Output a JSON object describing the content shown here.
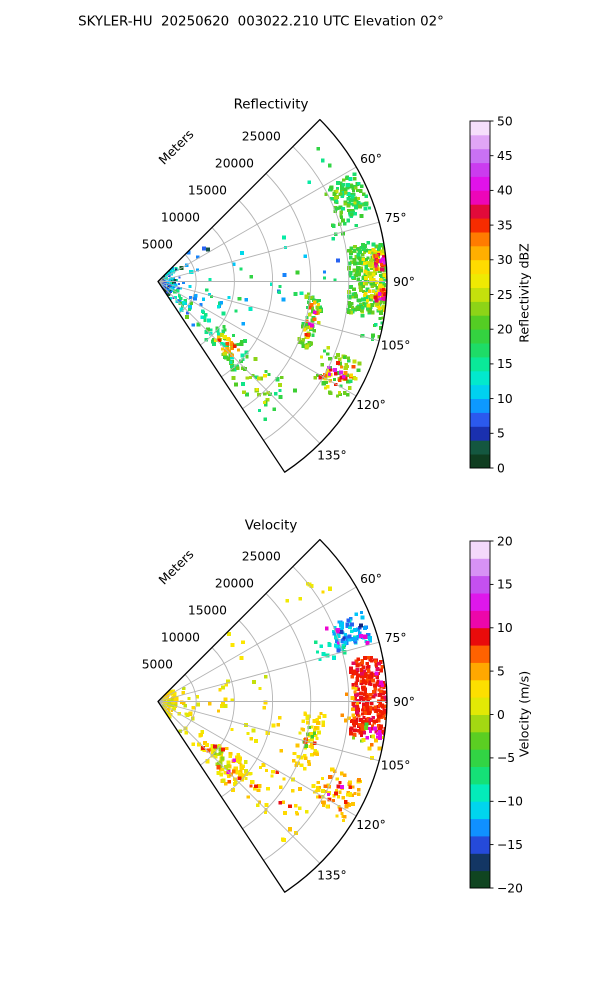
{
  "figure": {
    "title": "SKYLER-HU  20250620  003022.210 UTC Elevation 02°",
    "background": "#ffffff",
    "text_color": "#000000",
    "grid_color": "#b3b3b3",
    "outline_color": "#000000"
  },
  "colormap_stops": [
    [
      0.0,
      "#121065"
    ],
    [
      0.02,
      "#0f3d20"
    ],
    [
      0.05,
      "#146c28"
    ],
    [
      0.085,
      "#13217c"
    ],
    [
      0.105,
      "#1c35c0"
    ],
    [
      0.14,
      "#2b59ee"
    ],
    [
      0.175,
      "#1090ff"
    ],
    [
      0.205,
      "#00c3fa"
    ],
    [
      0.245,
      "#00e7e0"
    ],
    [
      0.285,
      "#04edae"
    ],
    [
      0.325,
      "#15e077"
    ],
    [
      0.365,
      "#2ed64d"
    ],
    [
      0.405,
      "#3fcc29"
    ],
    [
      0.445,
      "#78cf1b"
    ],
    [
      0.49,
      "#b8dd0e"
    ],
    [
      0.53,
      "#e8ea04"
    ],
    [
      0.56,
      "#fce800"
    ],
    [
      0.595,
      "#ffd200"
    ],
    [
      0.625,
      "#ffa800"
    ],
    [
      0.66,
      "#ff7b00"
    ],
    [
      0.685,
      "#fd5100"
    ],
    [
      0.705,
      "#f32000"
    ],
    [
      0.725,
      "#e90b0b"
    ],
    [
      0.745,
      "#e00a4a"
    ],
    [
      0.765,
      "#e80a8e"
    ],
    [
      0.785,
      "#ef04c6"
    ],
    [
      0.805,
      "#ea04e8"
    ],
    [
      0.85,
      "#cf2fee"
    ],
    [
      0.88,
      "#c257f0"
    ],
    [
      0.91,
      "#cd7ef4"
    ],
    [
      0.94,
      "#e0a5f6"
    ],
    [
      0.97,
      "#f2d4fa"
    ],
    [
      1.0,
      "#fdf4fe"
    ]
  ],
  "chart_data": [
    {
      "type": "radar-ppi-sector",
      "title": "Reflectivity",
      "radial_axis_label": "Meters",
      "radial_ticks_m": [
        5000,
        10000,
        15000,
        20000,
        25000
      ],
      "angle_ticks_deg": [
        60,
        75,
        90,
        105,
        120,
        135
      ],
      "sector": {
        "az_start_deg": 45,
        "az_end_deg": 146.4,
        "range_max_m": 30000
      },
      "colorbar": {
        "label": "Reflectivity dBZ",
        "min": 0,
        "max": 50,
        "ticks": [
          0,
          5,
          10,
          15,
          20,
          25,
          30,
          35,
          40,
          45,
          50
        ],
        "steps": 25
      },
      "echoes": [
        {
          "az": [
            45,
            146.4
          ],
          "r": [
            0,
            2200
          ],
          "v": 8,
          "spread": 7,
          "density": 1.5,
          "cell": 2
        },
        {
          "az": [
            45,
            146.4
          ],
          "r": [
            1000,
            3500
          ],
          "v": 9,
          "spread": 6,
          "density": 0.22,
          "cell": 2
        },
        {
          "az": [
            46,
            63
          ],
          "r": [
            3500,
            9500
          ],
          "v": 6,
          "spread": 4,
          "density": 0.08,
          "cell": 3
        },
        {
          "az": [
            95,
            144
          ],
          "r": [
            2000,
            7500
          ],
          "v": 13,
          "spread": 6,
          "density": 0.14,
          "cell": 3
        },
        {
          "az": [
            122,
            142
          ],
          "r": [
            3500,
            8500
          ],
          "v": 17,
          "spread": 6,
          "density": 0.22,
          "cell": 3
        },
        {
          "az": [
            98,
            122
          ],
          "r": [
            6000,
            13000
          ],
          "v": 14,
          "spread": 5,
          "density": 0.08,
          "cell": 3
        },
        {
          "az": [
            68,
            100
          ],
          "r": [
            4500,
            24000
          ],
          "v": 12,
          "spread": 5,
          "density": 0.016,
          "cell": 3
        },
        {
          "az": [
            86,
            100
          ],
          "r": [
            12000,
            19500
          ],
          "v": 16,
          "spread": 4,
          "density": 0.035,
          "cell": 3
        },
        {
          "az": [
            124,
            141
          ],
          "r": [
            9000,
            15500
          ],
          "v": 18,
          "spread": 4,
          "density": 0.32,
          "cell": 3
        },
        {
          "az": [
            128,
            138
          ],
          "r": [
            10500,
            14000
          ],
          "v": 28,
          "spread": 4,
          "density": 0.38,
          "cell": 3
        },
        {
          "az": [
            130,
            136
          ],
          "r": [
            11000,
            13500
          ],
          "v": 35,
          "spread": 3,
          "density": 0.3,
          "cell": 3
        },
        {
          "az": [
            127,
            143
          ],
          "r": [
            15500,
            23000
          ],
          "v": 20,
          "spread": 5,
          "density": 0.12,
          "cell": 3
        },
        {
          "az": [
            129,
            139
          ],
          "r": [
            16000,
            21500
          ],
          "v": 26,
          "spread": 3,
          "density": 0.05,
          "cell": 3
        },
        {
          "az": [
            94,
            114
          ],
          "r": [
            19500,
            21800
          ],
          "v": 21,
          "spread": 4,
          "density": 0.55,
          "cell": 3
        },
        {
          "az": [
            97,
            111
          ],
          "r": [
            20000,
            21300
          ],
          "v": 32,
          "spread": 4,
          "density": 0.33,
          "cell": 3
        },
        {
          "az": [
            99,
            107
          ],
          "r": [
            20200,
            21000
          ],
          "v": 39,
          "spread": 3,
          "density": 0.2,
          "cell": 3
        },
        {
          "az": [
            111,
            123
          ],
          "r": [
            23500,
            29000
          ],
          "v": 22,
          "spread": 5,
          "density": 0.28,
          "cell": 3
        },
        {
          "az": [
            113,
            121
          ],
          "r": [
            24500,
            28200
          ],
          "v": 33,
          "spread": 4,
          "density": 0.22,
          "cell": 3
        },
        {
          "az": [
            114,
            120
          ],
          "r": [
            25000,
            27600
          ],
          "v": 41,
          "spread": 2,
          "density": 0.1,
          "cell": 3
        },
        {
          "az": [
            79.5,
            99.5
          ],
          "r": [
            25000,
            30000
          ],
          "v": 20,
          "spread": 4,
          "density": 0.8,
          "cell": 3
        },
        {
          "az": [
            81.5,
            97.5
          ],
          "r": [
            27000,
            30000
          ],
          "v": 27,
          "spread": 3,
          "density": 0.55,
          "cell": 3
        },
        {
          "az": [
            83,
            87
          ],
          "r": [
            28600,
            30000
          ],
          "v": 36,
          "spread": 2.5,
          "density": 0.9,
          "cell": 3
        },
        {
          "az": [
            92,
            95.5
          ],
          "r": [
            28400,
            30000
          ],
          "v": 36,
          "spread": 2.5,
          "density": 0.75,
          "cell": 3
        },
        {
          "az": [
            84,
            86.3
          ],
          "r": [
            29200,
            30000
          ],
          "v": 41,
          "spread": 1.5,
          "density": 0.7,
          "cell": 3
        },
        {
          "az": [
            93,
            95
          ],
          "r": [
            29000,
            30000
          ],
          "v": 41,
          "spread": 1.5,
          "density": 0.5,
          "cell": 3
        },
        {
          "az": [
            61,
            71.5
          ],
          "r": [
            24800,
            29500
          ],
          "v": 19,
          "spread": 4,
          "density": 0.6,
          "cell": 3
        },
        {
          "az": [
            63,
            70
          ],
          "r": [
            25500,
            28500
          ],
          "v": 23,
          "spread": 2,
          "density": 0.2,
          "cell": 3
        },
        {
          "az": [
            71,
            77
          ],
          "r": [
            23500,
            28500
          ],
          "v": 18,
          "spread": 3,
          "density": 0.15,
          "cell": 3
        },
        {
          "az": [
            99,
            106
          ],
          "r": [
            27500,
            30000
          ],
          "v": 18,
          "spread": 3,
          "density": 0.15,
          "cell": 3
        },
        {
          "az": [
            50,
            57
          ],
          "r": [
            23000,
            28500
          ],
          "v": 17,
          "spread": 3,
          "density": 0.04,
          "cell": 3
        }
      ]
    },
    {
      "type": "radar-ppi-sector",
      "title": "Velocity",
      "radial_axis_label": "Meters",
      "radial_ticks_m": [
        5000,
        10000,
        15000,
        20000,
        25000
      ],
      "angle_ticks_deg": [
        60,
        75,
        90,
        105,
        120,
        135
      ],
      "sector": {
        "az_start_deg": 45,
        "az_end_deg": 146.4,
        "range_max_m": 30000
      },
      "colorbar": {
        "label": "Velocity (m/s)",
        "min": -20,
        "max": 20,
        "ticks": [
          -20,
          -15,
          -10,
          -5,
          0,
          5,
          10,
          15,
          20
        ],
        "steps": 20
      },
      "echoes": [
        {
          "az": [
            45,
            146.4
          ],
          "r": [
            0,
            2500
          ],
          "v": 2,
          "spread": 2,
          "density": 1.3,
          "cell": 2
        },
        {
          "az": [
            80,
            146
          ],
          "r": [
            2000,
            5500
          ],
          "v": 2.5,
          "spread": 2.5,
          "density": 0.18,
          "cell": 3
        },
        {
          "az": [
            46,
            80
          ],
          "r": [
            3000,
            15000
          ],
          "v": 2,
          "spread": 2,
          "density": 0.028,
          "cell": 3
        },
        {
          "az": [
            88,
            102
          ],
          "r": [
            3000,
            9500
          ],
          "v": 2.5,
          "spread": 2,
          "density": 0.12,
          "cell": 3
        },
        {
          "az": [
            96,
            112
          ],
          "r": [
            9000,
            18000
          ],
          "v": 2.5,
          "spread": 2,
          "density": 0.05,
          "cell": 3
        },
        {
          "az": [
            50,
            58
          ],
          "r": [
            21000,
            27000
          ],
          "v": 2,
          "spread": 1.5,
          "density": 0.05,
          "cell": 3
        },
        {
          "az": [
            78,
            95
          ],
          "r": [
            8000,
            18500
          ],
          "v": 2,
          "spread": 1.5,
          "density": 0.018,
          "cell": 3
        },
        {
          "az": [
            66,
            74.5
          ],
          "r": [
            24500,
            29200
          ],
          "v": -12,
          "spread": 2.5,
          "density": 0.55,
          "cell": 3
        },
        {
          "az": [
            67.5,
            72
          ],
          "r": [
            25500,
            28500
          ],
          "v": -15,
          "spread": 1.5,
          "density": 0.18,
          "cell": 3
        },
        {
          "az": [
            69,
            76.5
          ],
          "r": [
            21500,
            25500
          ],
          "v": -9,
          "spread": 1.5,
          "density": 0.2,
          "cell": 3
        },
        {
          "az": [
            66,
            75
          ],
          "r": [
            24000,
            29000
          ],
          "v": 12,
          "spread": 1,
          "density": 0.05,
          "cell": 3
        },
        {
          "az": [
            78,
            99.8
          ],
          "r": [
            25500,
            30000
          ],
          "v": 8.5,
          "spread": 1.3,
          "density": 0.85,
          "cell": 3
        },
        {
          "az": [
            82,
            86
          ],
          "r": [
            28500,
            30000
          ],
          "v": 12,
          "spread": 1,
          "density": 0.22,
          "cell": 3
        },
        {
          "az": [
            94,
            100
          ],
          "r": [
            27500,
            30000
          ],
          "v": 12,
          "spread": 1.2,
          "density": 0.2,
          "cell": 3
        },
        {
          "az": [
            84,
            96
          ],
          "r": [
            24200,
            26200
          ],
          "v": 5,
          "spread": 1.5,
          "density": 0.18,
          "cell": 3
        },
        {
          "az": [
            96,
            101
          ],
          "r": [
            25500,
            28500
          ],
          "v": -4,
          "spread": 2,
          "density": 0.1,
          "cell": 3
        },
        {
          "az": [
            99,
            106
          ],
          "r": [
            27000,
            30000
          ],
          "v": 4,
          "spread": 3,
          "density": 0.12,
          "cell": 3
        },
        {
          "az": [
            94,
            115
          ],
          "r": [
            19000,
            22000
          ],
          "v": 3,
          "spread": 1.5,
          "density": 0.4,
          "cell": 3
        },
        {
          "az": [
            99,
            107
          ],
          "r": [
            19500,
            21200
          ],
          "v": -4,
          "spread": 2,
          "density": 0.2,
          "cell": 3
        },
        {
          "az": [
            104,
            112
          ],
          "r": [
            20000,
            21500
          ],
          "v": 8,
          "spread": 1,
          "density": 0.09,
          "cell": 3
        },
        {
          "az": [
            111,
            123
          ],
          "r": [
            23500,
            29000
          ],
          "v": 4,
          "spread": 1.5,
          "density": 0.28,
          "cell": 3
        },
        {
          "az": [
            113,
            121
          ],
          "r": [
            24500,
            28000
          ],
          "v": 8,
          "spread": 1.5,
          "density": 0.13,
          "cell": 3
        },
        {
          "az": [
            114,
            119
          ],
          "r": [
            25000,
            27500
          ],
          "v": 12,
          "spread": 1,
          "density": 0.05,
          "cell": 3
        },
        {
          "az": [
            123,
            141
          ],
          "r": [
            7000,
            15500
          ],
          "v": 3,
          "spread": 1.8,
          "density": 0.38,
          "cell": 3
        },
        {
          "az": [
            127,
            137
          ],
          "r": [
            9500,
            13500
          ],
          "v": -1,
          "spread": 1.5,
          "density": 0.3,
          "cell": 3
        },
        {
          "az": [
            125,
            139
          ],
          "r": [
            8000,
            15000
          ],
          "v": 8,
          "spread": 1.5,
          "density": 0.06,
          "cell": 3
        },
        {
          "az": [
            126,
            136
          ],
          "r": [
            9000,
            14000
          ],
          "v": 12,
          "spread": 1,
          "density": 0.03,
          "cell": 3
        },
        {
          "az": [
            117,
            139
          ],
          "r": [
            15500,
            25000
          ],
          "v": 3,
          "spread": 1.5,
          "density": 0.08,
          "cell": 3
        },
        {
          "az": [
            120,
            134
          ],
          "r": [
            16000,
            23000
          ],
          "v": 8,
          "spread": 1,
          "density": 0.025,
          "cell": 3
        }
      ]
    }
  ]
}
